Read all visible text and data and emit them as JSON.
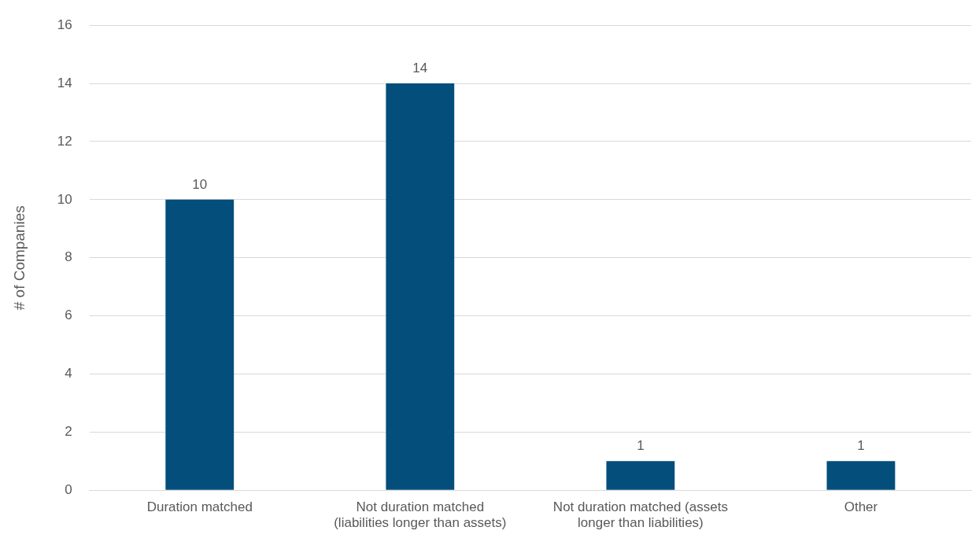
{
  "chart_data": {
    "type": "bar",
    "ylabel": "# of Companies",
    "categories": [
      "Duration matched",
      "Not duration matched (liabilities longer than assets)",
      "Not duration matched (assets longer than liabilities)",
      "Other"
    ],
    "values": [
      10,
      14,
      1,
      1
    ],
    "color": "#034e7b",
    "ylim": [
      0,
      16
    ],
    "yticks": [
      0,
      2,
      4,
      6,
      8,
      10,
      12,
      14,
      16
    ],
    "grid": "y",
    "data_labels": true,
    "legend": false
  }
}
